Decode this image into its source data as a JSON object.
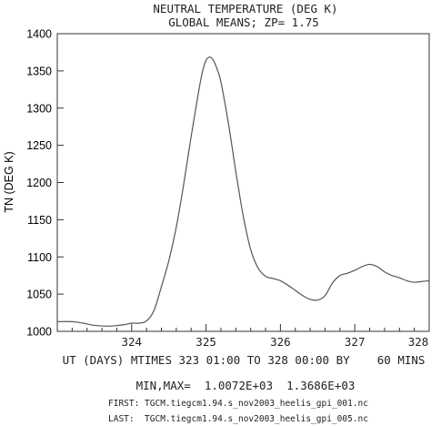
{
  "chart_data": {
    "type": "line",
    "title": "NEUTRAL TEMPERATURE (DEG K)",
    "subtitle": "GLOBAL MEANS; ZP=  1.75",
    "ylabel": "TN (DEG K)",
    "xlabel": "UT (DAYS) MTIMES 323 01:00 TO 328 00:00 BY    60 MINS",
    "minmax_text": "MIN,MAX=  1.0072E+03  1.3686E+03",
    "first_file": "FIRST: TGCM.tiegcm1.94.s_nov2003_heelis_gpi_001.nc",
    "last_file": "LAST:  TGCM.tiegcm1.94.s_nov2003_heelis_gpi_005.nc",
    "xlim": [
      323.0,
      328.0
    ],
    "ylim": [
      1000,
      1400
    ],
    "x_ticks": [
      324,
      325,
      326,
      327,
      328
    ],
    "y_ticks": [
      1000,
      1050,
      1100,
      1150,
      1200,
      1250,
      1300,
      1350,
      1400
    ],
    "grid": false,
    "line_color": "#555555",
    "series": [
      {
        "x": [
          323.0,
          323.2,
          323.35,
          323.5,
          323.7,
          323.9,
          324.0,
          324.1,
          324.2,
          324.3,
          324.4,
          324.5,
          324.6,
          324.7,
          324.8,
          324.9,
          324.95,
          325.0,
          325.05,
          325.1,
          325.15,
          325.2,
          325.3,
          325.4,
          325.5,
          325.6,
          325.7,
          325.8,
          325.9,
          326.0,
          326.1,
          326.2,
          326.3,
          326.4,
          326.5,
          326.6,
          326.7,
          326.8,
          326.9,
          327.0,
          327.1,
          327.2,
          327.3,
          327.4,
          327.5,
          327.6,
          327.7,
          327.8,
          327.9,
          328.0
        ],
        "y": [
          1013,
          1013,
          1011,
          1008,
          1007,
          1009,
          1011,
          1011,
          1014,
          1028,
          1060,
          1095,
          1140,
          1198,
          1262,
          1322,
          1348,
          1364,
          1368.6,
          1364,
          1352,
          1335,
          1280,
          1215,
          1155,
          1110,
          1085,
          1074,
          1071,
          1068,
          1062,
          1055,
          1048,
          1043,
          1042,
          1048,
          1065,
          1075,
          1078,
          1082,
          1087,
          1090,
          1087,
          1080,
          1075,
          1072,
          1068,
          1066,
          1067,
          1068
        ]
      }
    ]
  }
}
